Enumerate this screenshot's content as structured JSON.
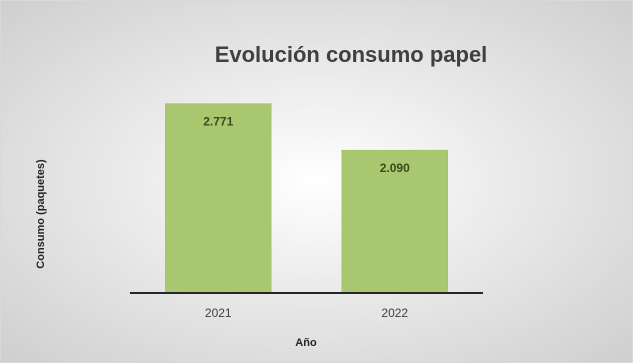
{
  "chart_data": {
    "type": "bar",
    "title": "Evolución consumo papel",
    "xlabel": "Año",
    "ylabel": "Consumo (paquetes)",
    "categories": [
      "2021",
      "2022"
    ],
    "values": [
      2771,
      2090
    ],
    "data_labels": [
      "2.771",
      "2.090"
    ],
    "ylim": [
      0,
      3000
    ],
    "grid": false,
    "legend": "none",
    "colors": {
      "bar": "#a9c76f",
      "bar_edge": "#9dbd62",
      "axis": "#262626",
      "title": "#404040",
      "tick_label": "#404040",
      "axis_label": "#262626",
      "data_label": "#3b4a1e",
      "background_light": "#ffffff",
      "background_dark": "#cfcfcf",
      "border": "#d9d9d9"
    }
  }
}
